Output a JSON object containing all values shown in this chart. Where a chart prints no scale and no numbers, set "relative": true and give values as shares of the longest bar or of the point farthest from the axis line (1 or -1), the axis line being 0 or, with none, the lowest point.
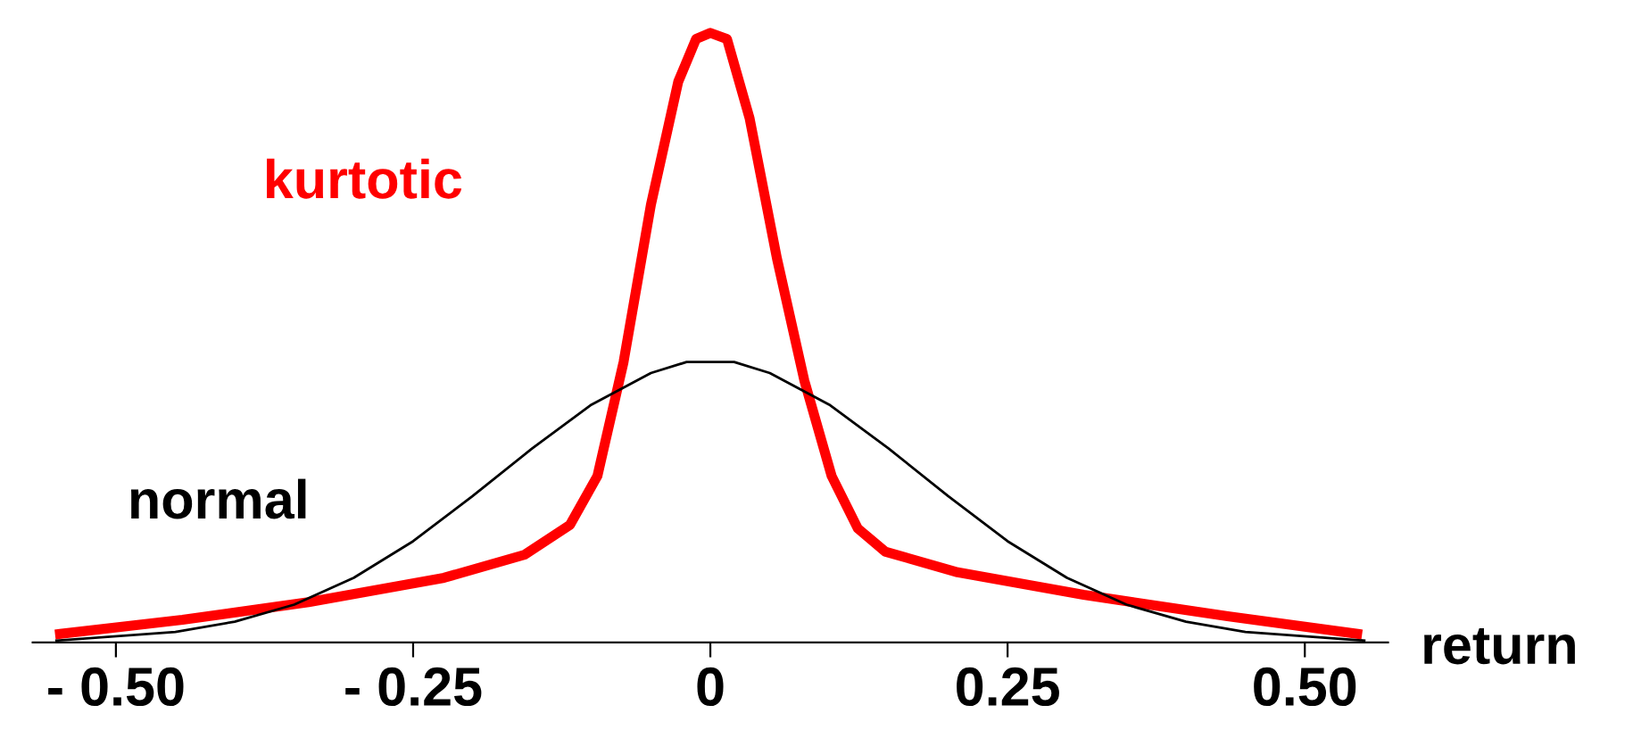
{
  "chart_data": {
    "type": "line",
    "relative": true,
    "xlabel": "return",
    "xlim": [
      -0.57,
      0.57
    ],
    "xticks": [
      {
        "value": -0.5,
        "label": "- 0.50"
      },
      {
        "value": -0.25,
        "label": "- 0.25"
      },
      0,
      {
        "value": 0.25,
        "label": "0.25"
      },
      {
        "value": 0.5,
        "label": "0.50"
      }
    ],
    "grid": false,
    "legend": false,
    "marker": "none",
    "line_style": "solid",
    "series": [
      {
        "name": "normal",
        "color": "#000000",
        "x": [
          -0.55,
          -0.45,
          -0.4,
          -0.35,
          -0.3,
          -0.25,
          -0.2,
          -0.15,
          -0.1,
          -0.05,
          -0.02,
          0,
          0.02,
          0.05,
          0.1,
          0.15,
          0.2,
          0.25,
          0.3,
          0.35,
          0.4,
          0.45,
          0.55
        ],
        "values": [
          0.003,
          0.017,
          0.034,
          0.062,
          0.106,
          0.166,
          0.24,
          0.318,
          0.39,
          0.442,
          0.46,
          0.46,
          0.46,
          0.442,
          0.39,
          0.318,
          0.24,
          0.166,
          0.106,
          0.062,
          0.034,
          0.017,
          0.003
        ]
      },
      {
        "name": "kurtotic",
        "color": "#ff0000",
        "x": [
          -0.547,
          -0.444,
          -0.338,
          -0.224,
          -0.156,
          -0.118,
          -0.095,
          -0.073,
          -0.05,
          -0.027,
          -0.012,
          0,
          0.014,
          0.033,
          0.056,
          0.079,
          0.102,
          0.124,
          0.147,
          0.208,
          0.314,
          0.435,
          0.544
        ],
        "values": [
          0.014,
          0.037,
          0.066,
          0.106,
          0.144,
          0.193,
          0.273,
          0.46,
          0.718,
          0.92,
          0.99,
          1,
          0.99,
          0.86,
          0.63,
          0.43,
          0.273,
          0.187,
          0.149,
          0.115,
          0.078,
          0.043,
          0.014
        ]
      }
    ]
  }
}
